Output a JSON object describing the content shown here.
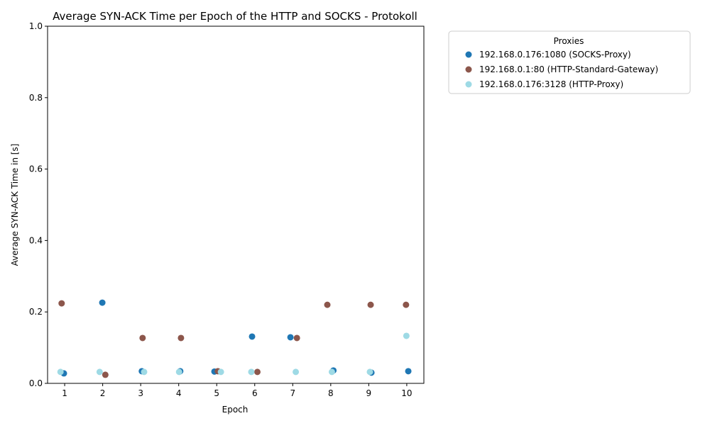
{
  "chart_data": {
    "type": "scatter",
    "title": "Average SYN-ACK Time per Epoch of the HTTP and SOCKS - Protokoll",
    "xlabel": "Epoch",
    "ylabel": "Average SYN-ACK Time in [s]",
    "xlim": [
      0.55,
      10.45
    ],
    "ylim": [
      0,
      1.0
    ],
    "x_ticks": [
      1,
      2,
      3,
      4,
      5,
      6,
      7,
      8,
      9,
      10
    ],
    "y_ticks": [
      0.0,
      0.2,
      0.4,
      0.6,
      0.8,
      1.0
    ],
    "y_tick_labels": [
      "0.0",
      "0.2",
      "0.4",
      "0.6",
      "0.8",
      "1.0"
    ],
    "grid": false,
    "legend": {
      "title": "Proxies",
      "placement": "outside-right-top"
    },
    "series": [
      {
        "name": "192.168.0.176:1080 (SOCKS-Proxy)",
        "color": "#1f77b4",
        "x": [
          0.98,
          1.99,
          3.03,
          4.04,
          4.94,
          5.93,
          6.94,
          8.07,
          9.07,
          10.04
        ],
        "y": [
          0.028,
          0.226,
          0.034,
          0.034,
          0.033,
          0.131,
          0.129,
          0.036,
          0.03,
          0.034
        ]
      },
      {
        "name": "192.168.0.1:80 (HTTP-Standard-Gateway)",
        "color": "#8c564b",
        "x": [
          0.92,
          2.07,
          3.05,
          4.06,
          5.03,
          6.07,
          7.11,
          7.91,
          9.05,
          9.98
        ],
        "y": [
          0.224,
          0.024,
          0.127,
          0.127,
          0.034,
          0.032,
          0.127,
          0.22,
          0.22,
          0.22
        ]
      },
      {
        "name": "192.168.0.176:3128 (HTTP-Proxy)",
        "color": "#9edae5",
        "x": [
          0.89,
          1.92,
          3.09,
          4.01,
          5.11,
          5.91,
          7.08,
          8.03,
          9.03,
          9.99
        ],
        "y": [
          0.032,
          0.032,
          0.032,
          0.032,
          0.032,
          0.032,
          0.032,
          0.032,
          0.032,
          0.133
        ]
      }
    ]
  }
}
